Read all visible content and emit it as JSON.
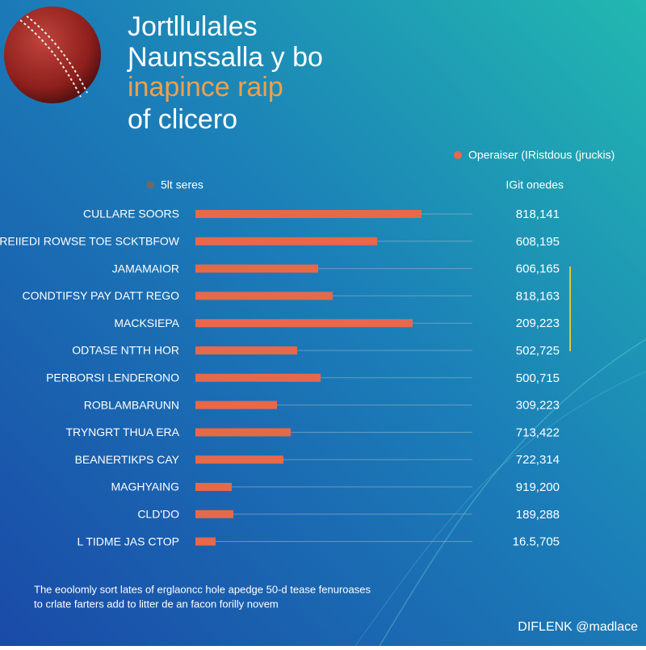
{
  "chart_data": {
    "type": "bar",
    "orientation": "horizontal",
    "title_lines": [
      "Jortllulales",
      "Ɲaunssalla y bo",
      "inapince raip",
      "of clicero"
    ],
    "title_highlight_color": "#f0a04b",
    "categories": [
      "CULLARE SOORS",
      "REIIEDI ROWSE TOE SCKTBFOW",
      "JAMAMAIOR",
      "CONDTIFSY PAY DATT REGO",
      "MACKSIEPA",
      "ODTASE NTTH HOR",
      "PERBORSI LENDERONO",
      "ROBLAMBARUNN",
      "TRYNGRT THUA ERA",
      "BEANERTIKPS CAY",
      "MAGHYAING",
      "CLD'DO",
      "L TIDME JAS CTOP"
    ],
    "series": [
      {
        "name": "Operaiser (IRistdous (jruckis)",
        "color": "#e8684a",
        "values": [
          28,
          22.5,
          15.2,
          17,
          26.9,
          12.6,
          15.5,
          10.1,
          11.8,
          10.9,
          4.5,
          4.7,
          2.5
        ]
      }
    ],
    "secondary_legend": {
      "name": "5lt seres",
      "color": "#6a6a6a"
    },
    "side_column": {
      "header": "IGit onedes",
      "values": [
        "818,141",
        "608,195",
        "606,165",
        "818,163",
        "209,223",
        "502,725",
        "500,715",
        "309,223",
        "713,422",
        "722,314",
        "919,200",
        "189,288",
        "16.5,705"
      ]
    },
    "footnote_lines": [
      "The eoolomly sort lates of erglaoncc hole apedge 50-d tease fenuroases",
      "to crlate farters add to litter de an facon forilly novem"
    ],
    "signature": "DIFLENK @madlace"
  }
}
